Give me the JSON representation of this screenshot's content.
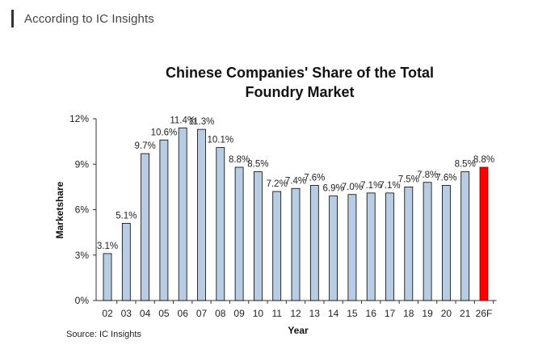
{
  "header": {
    "text": "According to IC Insights"
  },
  "chart_data": {
    "type": "bar",
    "title_lines": [
      "Chinese Companies' Share of the Total",
      "Foundry Market"
    ],
    "xlabel": "Year",
    "ylabel": "Marketshare",
    "categories": [
      "02",
      "03",
      "04",
      "05",
      "06",
      "07",
      "08",
      "09",
      "10",
      "11",
      "12",
      "13",
      "14",
      "15",
      "16",
      "17",
      "18",
      "19",
      "20",
      "21",
      "26F"
    ],
    "values": [
      3.1,
      5.1,
      9.7,
      10.6,
      11.4,
      11.3,
      10.1,
      8.8,
      8.5,
      7.2,
      7.4,
      7.6,
      6.9,
      7.0,
      7.1,
      7.1,
      7.5,
      7.8,
      7.6,
      8.5,
      8.8
    ],
    "data_labels": [
      "3.1%",
      "5.1%",
      "9.7%",
      "10.6%",
      "11.4%",
      "11.3%",
      "10.1%",
      "8.8%",
      "8.5%",
      "7.2%",
      "7.4%",
      "7.6%",
      "6.9%",
      "7.0%",
      "7.1%",
      "7.1%",
      "7.5%",
      "7.8%",
      "7.6%",
      "8.5%",
      "8.8%"
    ],
    "ylim": [
      0,
      12
    ],
    "yticks": [
      0,
      3,
      6,
      9,
      12
    ],
    "ytick_labels": [
      "0%",
      "3%",
      "6%",
      "9%",
      "12%"
    ],
    "grid": false,
    "legend": "none",
    "colors": {
      "bar_fill": "#b8cce4",
      "bar_stroke": "#000000",
      "forecast_fill": "#ff0000",
      "forecast_stroke": "#8b0000"
    },
    "forecast_category": "26F",
    "source": "Source: IC Insights"
  }
}
